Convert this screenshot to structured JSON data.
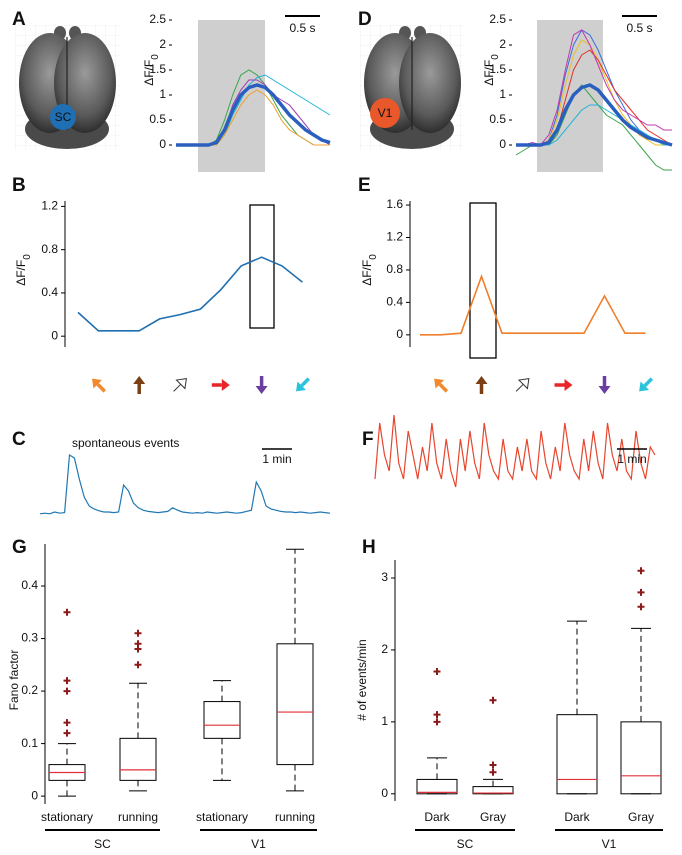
{
  "chart_data": [
    {
      "type": "trace",
      "panel": "A",
      "region": "SC",
      "region_color": "#1f6fb5",
      "ylabel": "ΔF/F",
      "ylabel_sub": "0",
      "scale_bar": "0.5 s",
      "ylim": [
        -0.5,
        2.5
      ],
      "yticks": [
        0,
        0.5,
        1,
        1.5,
        2,
        2.5
      ],
      "series": [
        {
          "color": "#2a5fbf",
          "values": [
            0,
            0,
            0,
            0,
            0,
            0.05,
            0.3,
            0.7,
            1.0,
            1.15,
            1.2,
            1.15,
            1.0,
            0.8,
            0.6,
            0.45,
            0.3,
            0.2,
            0.1,
            0.05
          ]
        },
        {
          "color": "#3aa64a",
          "values": [
            0,
            0,
            0,
            0,
            0,
            0.1,
            0.5,
            1.0,
            1.4,
            1.5,
            1.4,
            1.2,
            0.9,
            0.6,
            0.4,
            0.2,
            0.1,
            0,
            0,
            0
          ]
        },
        {
          "color": "#22b5d6",
          "values": [
            0,
            0,
            0,
            0,
            0,
            0,
            0.2,
            0.6,
            0.9,
            1.2,
            1.35,
            1.4,
            1.3,
            1.2,
            1.1,
            1.0,
            0.9,
            0.8,
            0.7,
            0.6
          ]
        },
        {
          "color": "#9b3fb5",
          "values": [
            0,
            0,
            0,
            0,
            0,
            0.05,
            0.3,
            0.8,
            1.1,
            1.3,
            1.3,
            1.2,
            1.0,
            0.9,
            0.8,
            0.6,
            0.4,
            0.2,
            0.1,
            0
          ]
        },
        {
          "color": "#f0a030",
          "values": [
            0,
            0,
            0,
            0,
            0,
            0,
            0.2,
            0.5,
            0.8,
            1.0,
            1.1,
            1.0,
            0.8,
            0.5,
            0.3,
            0.2,
            0.1,
            0,
            0,
            0
          ]
        }
      ]
    },
    {
      "type": "trace",
      "panel": "D",
      "region": "V1",
      "region_color": "#e8582a",
      "ylabel": "ΔF/F",
      "ylabel_sub": "0",
      "scale_bar": "0.5 s",
      "ylim": [
        -0.5,
        2.5
      ],
      "yticks": [
        0,
        0.5,
        1,
        1.5,
        2,
        2.5
      ],
      "series": [
        {
          "color": "#2a5fbf",
          "values": [
            0,
            0,
            0,
            0,
            0.05,
            0.3,
            0.7,
            1.0,
            1.15,
            1.2,
            1.1,
            0.9,
            0.7,
            0.5,
            0.35,
            0.25,
            0.15,
            0.1,
            0.05,
            0
          ]
        },
        {
          "color": "#3aa64a",
          "values": [
            -0.2,
            -0.1,
            0,
            0,
            0,
            0.2,
            0.6,
            1.0,
            1.2,
            1.0,
            0.8,
            0.6,
            0.5,
            0.4,
            0.2,
            0,
            -0.2,
            -0.4,
            -0.5,
            -0.5
          ]
        },
        {
          "color": "#3a6fd8",
          "values": [
            0,
            0,
            0,
            0,
            0.1,
            0.6,
            1.4,
            2.0,
            2.3,
            2.2,
            1.9,
            1.5,
            1.1,
            0.8,
            0.5,
            0.3,
            0.2,
            0.1,
            0,
            0
          ]
        },
        {
          "color": "#e8c020",
          "values": [
            0,
            0,
            0,
            0,
            0.1,
            0.5,
            1.2,
            1.8,
            2.1,
            2.0,
            1.7,
            1.3,
            0.9,
            0.6,
            0.4,
            0.2,
            0.1,
            0,
            0,
            0
          ]
        },
        {
          "color": "#e0302a",
          "values": [
            0,
            0,
            0,
            0,
            0,
            0.3,
            0.9,
            1.5,
            1.8,
            1.9,
            1.7,
            1.4,
            1.1,
            0.9,
            0.7,
            0.5,
            0.3,
            0.2,
            0.1,
            0
          ]
        },
        {
          "color": "#22b5d6",
          "values": [
            0,
            0,
            0,
            0,
            0,
            0.1,
            0.3,
            0.5,
            0.7,
            0.8,
            0.8,
            0.7,
            0.6,
            0.5,
            0.4,
            0.3,
            0.2,
            0.1,
            0,
            0
          ]
        },
        {
          "color": "#c03ab0",
          "values": [
            0,
            0,
            0.05,
            0,
            0.2,
            0.7,
            1.5,
            2.2,
            2.3,
            2.0,
            1.6,
            1.2,
            0.9,
            0.7,
            0.6,
            0.5,
            0.4,
            0.4,
            0.3,
            0.3
          ]
        }
      ]
    },
    {
      "type": "tuning",
      "panel": "B",
      "ylabel": "ΔF/F",
      "ylabel_sub": "0",
      "color": "#1f6fb0",
      "categories": [
        null,
        null,
        null,
        null,
        null,
        null,
        null,
        null,
        null,
        null,
        null,
        null
      ],
      "values": [
        0.22,
        0.05,
        0.05,
        0.05,
        0.16,
        0.2,
        0.25,
        0.43,
        0.65,
        0.73,
        0.65,
        0.5
      ],
      "ylim": [
        -0.1,
        1.25
      ],
      "yticks": [
        0,
        0.4,
        0.8,
        1.2
      ]
    },
    {
      "type": "tuning",
      "panel": "E",
      "ylabel": "ΔF/F",
      "ylabel_sub": "0",
      "color": "#f07e2b",
      "categories": [
        null,
        null,
        null,
        null,
        null,
        null,
        null,
        null,
        null,
        null,
        null,
        null
      ],
      "values": [
        0,
        0,
        0.02,
        0.72,
        0.02,
        0.02,
        0.02,
        0.02,
        0.02,
        0.48,
        0.02,
        0.02
      ],
      "ylim": [
        -0.15,
        1.65
      ],
      "yticks": [
        0,
        0.4,
        0.8,
        1.2,
        1.6
      ]
    },
    {
      "type": "event_trace",
      "panel": "C",
      "title": "spontaneous events",
      "scale_bar": "1 min",
      "color": "#1f77b4",
      "values": [
        0.02,
        0.03,
        0.02,
        0.05,
        0.03,
        0.04,
        1.0,
        0.95,
        0.6,
        0.3,
        0.15,
        0.1,
        0.07,
        0.05,
        0.05,
        0.04,
        0.05,
        0.5,
        0.4,
        0.2,
        0.12,
        0.08,
        0.06,
        0.05,
        0.04,
        0.05,
        0.06,
        0.12,
        0.08,
        0.05,
        0.04,
        0.03,
        0.04,
        0.03,
        0.05,
        0.04,
        0.03,
        0.04,
        0.05,
        0.04,
        0.03,
        0.04,
        0.06,
        0.08,
        0.55,
        0.4,
        0.15,
        0.1,
        0.08,
        0.06,
        0.05,
        0.05,
        0.04,
        0.05,
        0.04,
        0.03,
        0.04,
        0.05,
        0.04,
        0.03
      ]
    },
    {
      "type": "event_trace",
      "panel": "F",
      "scale_bar": "1 min",
      "color": "#e8452c",
      "values": [
        0.2,
        0.9,
        0.5,
        0.3,
        1.0,
        0.4,
        0.2,
        0.8,
        0.5,
        0.2,
        0.6,
        0.3,
        0.9,
        0.4,
        0.2,
        0.7,
        0.3,
        0.1,
        0.7,
        0.3,
        0.8,
        0.4,
        0.2,
        0.9,
        0.5,
        0.3,
        0.2,
        0.7,
        0.3,
        0.2,
        0.6,
        0.3,
        0.7,
        0.3,
        0.2,
        0.8,
        0.4,
        0.2,
        0.6,
        0.3,
        0.9,
        0.5,
        0.3,
        0.2,
        0.7,
        0.3,
        0.8,
        0.4,
        0.2,
        0.9,
        0.5,
        0.3,
        0.7,
        0.3,
        0.2,
        0.8,
        0.4,
        0.2,
        0.6,
        0.5
      ]
    },
    {
      "type": "box",
      "panel": "G",
      "ylabel": "Fano factor",
      "categories": [
        "stationary",
        "running",
        "stationary",
        "running"
      ],
      "groups": [
        "SC",
        "V1"
      ],
      "ylim": [
        -0.015,
        0.48
      ],
      "yticks": [
        0,
        0.1,
        0.2,
        0.3,
        0.4
      ],
      "median_color": "#e0303a",
      "outlier_color": "#8b1a1a",
      "boxes": [
        {
          "whisker_low": 0.0,
          "q1": 0.03,
          "median": 0.045,
          "q3": 0.06,
          "whisker_high": 0.1,
          "outliers": [
            0.35,
            0.22,
            0.2,
            0.14,
            0.12
          ]
        },
        {
          "whisker_low": 0.01,
          "q1": 0.03,
          "median": 0.05,
          "q3": 0.11,
          "whisker_high": 0.215,
          "outliers": [
            0.31,
            0.29,
            0.28,
            0.25
          ]
        },
        {
          "whisker_low": 0.03,
          "q1": 0.11,
          "median": 0.135,
          "q3": 0.18,
          "whisker_high": 0.22,
          "outliers": []
        },
        {
          "whisker_low": 0.01,
          "q1": 0.06,
          "median": 0.16,
          "q3": 0.29,
          "whisker_high": 0.47,
          "outliers": []
        }
      ]
    },
    {
      "type": "box",
      "panel": "H",
      "ylabel": "# of events/min",
      "categories": [
        "Dark",
        "Gray",
        "Dark",
        "Gray"
      ],
      "groups": [
        "SC",
        "V1"
      ],
      "ylim": [
        -0.1,
        3.25
      ],
      "yticks": [
        0,
        1,
        2,
        3
      ],
      "median_color": "#e0303a",
      "outlier_color": "#8b1a1a",
      "boxes": [
        {
          "whisker_low": 0,
          "q1": 0,
          "median": 0.02,
          "q3": 0.2,
          "whisker_high": 0.5,
          "outliers": [
            1.7,
            1.1,
            1.0
          ]
        },
        {
          "whisker_low": 0,
          "q1": 0,
          "median": 0.01,
          "q3": 0.1,
          "whisker_high": 0.2,
          "outliers": [
            1.3,
            0.4,
            0.3
          ]
        },
        {
          "whisker_low": 0,
          "q1": 0,
          "median": 0.2,
          "q3": 1.1,
          "whisker_high": 2.4,
          "outliers": []
        },
        {
          "whisker_low": 0,
          "q1": 0,
          "median": 0.25,
          "q3": 1.0,
          "whisker_high": 2.3,
          "outliers": [
            3.1,
            2.8,
            2.6
          ]
        }
      ]
    }
  ]
}
